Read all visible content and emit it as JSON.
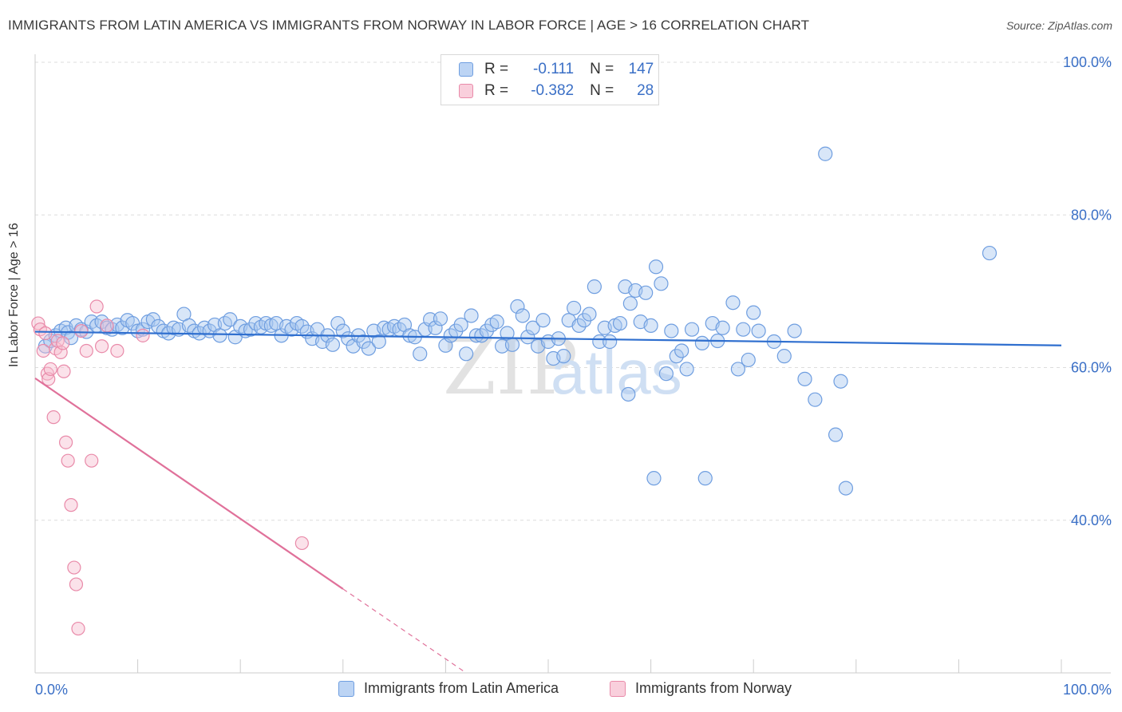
{
  "title": "IMMIGRANTS FROM LATIN AMERICA VS IMMIGRANTS FROM NORWAY IN LABOR FORCE | AGE > 16 CORRELATION CHART",
  "source": "Source: ZipAtlas.com",
  "watermark": {
    "zip": "ZIP",
    "atlas": "atlas"
  },
  "colors": {
    "blue_fill": "#a9c8f0",
    "blue_stroke": "#6f9ee0",
    "blue_line": "#2f6fcf",
    "pink_fill": "#f6bfd0",
    "pink_stroke": "#e98aa9",
    "pink_line": "#e0719a",
    "axis_text": "#3a6fc6",
    "grid": "#dddddd"
  },
  "legend": {
    "rows": [
      {
        "r_label": "R =",
        "r_value": "-0.111",
        "n_label": "N =",
        "n_value": "147"
      },
      {
        "r_label": "R =",
        "r_value": "-0.382",
        "n_label": "N =",
        "n_value": "28"
      }
    ]
  },
  "bottom_legend": {
    "latin": "Immigrants from Latin America",
    "norway": "Immigrants from Norway"
  },
  "chart_data": {
    "type": "scatter",
    "title": "IMMIGRANTS FROM LATIN AMERICA VS IMMIGRANTS FROM NORWAY IN LABOR FORCE | AGE > 16 CORRELATION CHART",
    "xlabel": "",
    "ylabel": "In Labor Force | Age > 16",
    "xlim": [
      0,
      100
    ],
    "ylim": [
      20,
      100
    ],
    "x_tick_labels": [
      "0.0%",
      "100.0%"
    ],
    "y_ticks": [
      40,
      60,
      80,
      100
    ],
    "y_tick_labels": [
      "40.0%",
      "60.0%",
      "80.0%",
      "100.0%"
    ],
    "grid": true,
    "legend_position": "top-center",
    "series": [
      {
        "name": "Immigrants from Latin America",
        "R": -0.111,
        "N": 147,
        "trend": {
          "x": [
            0,
            100
          ],
          "y": [
            64.7,
            62.9
          ]
        },
        "points": [
          [
            1,
            62.8
          ],
          [
            1.5,
            63.5
          ],
          [
            2,
            64.2
          ],
          [
            2.5,
            64.8
          ],
          [
            3,
            65.2
          ],
          [
            3.2,
            64.6
          ],
          [
            3.5,
            63.9
          ],
          [
            4,
            65.5
          ],
          [
            4.5,
            65.0
          ],
          [
            5,
            64.7
          ],
          [
            5.5,
            66.0
          ],
          [
            6,
            65.5
          ],
          [
            6.5,
            66.0
          ],
          [
            7,
            65.2
          ],
          [
            7.5,
            65.0
          ],
          [
            8,
            65.6
          ],
          [
            8.5,
            65.2
          ],
          [
            9,
            66.2
          ],
          [
            9.5,
            65.8
          ],
          [
            10,
            64.8
          ],
          [
            10.5,
            65.0
          ],
          [
            11,
            66.0
          ],
          [
            11.5,
            66.3
          ],
          [
            12,
            65.4
          ],
          [
            12.5,
            64.8
          ],
          [
            13,
            64.5
          ],
          [
            13.5,
            65.2
          ],
          [
            14,
            65.0
          ],
          [
            14.5,
            67.0
          ],
          [
            15,
            65.5
          ],
          [
            15.5,
            64.8
          ],
          [
            16,
            64.5
          ],
          [
            16.5,
            65.2
          ],
          [
            17,
            64.8
          ],
          [
            17.5,
            65.6
          ],
          [
            18,
            64.2
          ],
          [
            18.5,
            65.8
          ],
          [
            19,
            66.3
          ],
          [
            19.5,
            64.0
          ],
          [
            20,
            65.4
          ],
          [
            20.5,
            64.8
          ],
          [
            21,
            65.0
          ],
          [
            21.5,
            65.8
          ],
          [
            22,
            65.3
          ],
          [
            22.5,
            65.8
          ],
          [
            23,
            65.5
          ],
          [
            23.5,
            65.8
          ],
          [
            24,
            64.2
          ],
          [
            24.5,
            65.4
          ],
          [
            25,
            65.0
          ],
          [
            25.5,
            65.8
          ],
          [
            26,
            65.4
          ],
          [
            26.5,
            64.7
          ],
          [
            27,
            63.8
          ],
          [
            27.5,
            65.0
          ],
          [
            28,
            63.4
          ],
          [
            28.5,
            64.2
          ],
          [
            29,
            63.0
          ],
          [
            29.5,
            65.8
          ],
          [
            30,
            64.8
          ],
          [
            30.5,
            63.8
          ],
          [
            31,
            62.8
          ],
          [
            31.5,
            64.2
          ],
          [
            32,
            63.4
          ],
          [
            32.5,
            62.5
          ],
          [
            33,
            64.8
          ],
          [
            33.5,
            63.4
          ],
          [
            34,
            65.2
          ],
          [
            34.5,
            65.0
          ],
          [
            35,
            65.4
          ],
          [
            35.5,
            65.0
          ],
          [
            36,
            65.6
          ],
          [
            36.5,
            64.2
          ],
          [
            37,
            64.0
          ],
          [
            37.5,
            61.8
          ],
          [
            38,
            65.0
          ],
          [
            38.5,
            66.3
          ],
          [
            39,
            65.2
          ],
          [
            39.5,
            66.4
          ],
          [
            40,
            62.9
          ],
          [
            40.5,
            64.2
          ],
          [
            41,
            64.8
          ],
          [
            41.5,
            65.6
          ],
          [
            42,
            61.8
          ],
          [
            42.5,
            66.8
          ],
          [
            43,
            64.2
          ],
          [
            43.5,
            64.2
          ],
          [
            44,
            64.8
          ],
          [
            44.5,
            65.6
          ],
          [
            45,
            66.0
          ],
          [
            45.5,
            62.8
          ],
          [
            46,
            64.5
          ],
          [
            46.5,
            63.0
          ],
          [
            47,
            68.0
          ],
          [
            47.5,
            66.8
          ],
          [
            48,
            64.0
          ],
          [
            48.5,
            65.2
          ],
          [
            49,
            62.8
          ],
          [
            49.5,
            66.2
          ],
          [
            50,
            63.4
          ],
          [
            50.5,
            61.2
          ],
          [
            51,
            63.8
          ],
          [
            51.5,
            61.5
          ],
          [
            52,
            66.2
          ],
          [
            52.5,
            67.8
          ],
          [
            53,
            65.5
          ],
          [
            53.5,
            66.2
          ],
          [
            54,
            67.0
          ],
          [
            54.5,
            70.6
          ],
          [
            55,
            63.4
          ],
          [
            55.5,
            65.2
          ],
          [
            56,
            63.4
          ],
          [
            56.5,
            65.5
          ],
          [
            57,
            65.8
          ],
          [
            57.5,
            70.6
          ],
          [
            57.8,
            56.5
          ],
          [
            58,
            68.4
          ],
          [
            58.5,
            70.1
          ],
          [
            59,
            66.0
          ],
          [
            59.5,
            69.8
          ],
          [
            60,
            65.5
          ],
          [
            60.5,
            73.2
          ],
          [
            61,
            71.0
          ],
          [
            61.5,
            59.2
          ],
          [
            62,
            64.8
          ],
          [
            62.5,
            61.5
          ],
          [
            63,
            62.2
          ],
          [
            63.5,
            59.8
          ],
          [
            64,
            65.0
          ],
          [
            65,
            63.2
          ],
          [
            66,
            65.8
          ],
          [
            66.5,
            63.5
          ],
          [
            67,
            65.2
          ],
          [
            68,
            68.5
          ],
          [
            68.5,
            59.8
          ],
          [
            69,
            65.0
          ],
          [
            69.5,
            61.0
          ],
          [
            70,
            67.2
          ],
          [
            70.5,
            64.8
          ],
          [
            72,
            63.4
          ],
          [
            73,
            61.5
          ],
          [
            74,
            64.8
          ],
          [
            75,
            58.5
          ],
          [
            76,
            55.8
          ],
          [
            77,
            88.0
          ],
          [
            78,
            51.2
          ],
          [
            78.5,
            58.2
          ],
          [
            79,
            44.2
          ],
          [
            93,
            75.0
          ],
          [
            60.3,
            45.5
          ],
          [
            65.3,
            45.5
          ]
        ]
      },
      {
        "name": "Immigrants from Norway",
        "R": -0.382,
        "N": 28,
        "trend": {
          "x": [
            0,
            30
          ],
          "y": [
            58.6,
            31.0
          ]
        },
        "trend_dashed": {
          "x": [
            30,
            42
          ],
          "y": [
            31.0,
            20.0
          ]
        },
        "points": [
          [
            0.3,
            65.8
          ],
          [
            0.5,
            65.0
          ],
          [
            0.8,
            62.2
          ],
          [
            1.0,
            64.5
          ],
          [
            1.2,
            59.2
          ],
          [
            1.3,
            58.5
          ],
          [
            1.5,
            59.8
          ],
          [
            1.8,
            53.5
          ],
          [
            2.0,
            62.5
          ],
          [
            2.2,
            63.5
          ],
          [
            2.5,
            62.0
          ],
          [
            2.8,
            59.5
          ],
          [
            3.0,
            50.2
          ],
          [
            3.2,
            47.8
          ],
          [
            3.5,
            42.0
          ],
          [
            3.8,
            33.8
          ],
          [
            4.0,
            31.6
          ],
          [
            4.2,
            25.8
          ],
          [
            4.5,
            64.8
          ],
          [
            5.0,
            62.2
          ],
          [
            5.5,
            47.8
          ],
          [
            6.0,
            68.0
          ],
          [
            6.5,
            62.8
          ],
          [
            7.0,
            65.5
          ],
          [
            8.0,
            62.2
          ],
          [
            10.5,
            64.2
          ],
          [
            26.0,
            37.0
          ],
          [
            2.7,
            63.2
          ]
        ]
      }
    ]
  }
}
